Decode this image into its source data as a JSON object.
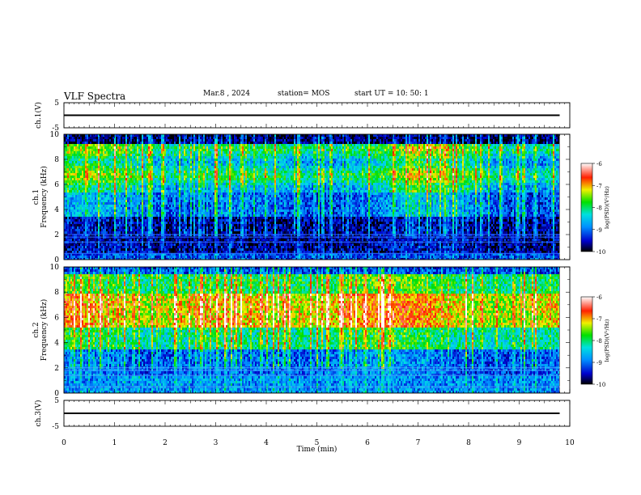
{
  "header": {
    "title": "VLF Spectra",
    "date": "Mar.8 , 2024",
    "station": "station= MOS",
    "start": "start UT =  10: 50: 1"
  },
  "chart_data": [
    {
      "type": "line",
      "panel": "ch1-voltage",
      "ylabel": "ch.1(V)",
      "ylim": [
        -5,
        5
      ],
      "yticks": [
        "5",
        "-5"
      ],
      "xlim": [
        0,
        10
      ],
      "series": [
        {
          "x": [
            0,
            9.8
          ],
          "values": [
            0,
            0
          ]
        }
      ]
    },
    {
      "type": "heatmap",
      "panel": "ch1-spectrogram",
      "ylabel": "ch.1\nFrequency (kHz)",
      "ylabel_line1": "ch.1",
      "ylabel_line2": "Frequency (kHz)",
      "ylim": [
        0,
        10
      ],
      "yticks": [
        "0",
        "2",
        "4",
        "6",
        "8",
        "10"
      ],
      "xlim": [
        0,
        10
      ],
      "data_xmax": 9.8,
      "colorbar": {
        "label": "log(PSD)(V²/Hz)",
        "range": [
          -10,
          -6
        ],
        "ticks": [
          "-6",
          "-7",
          "-8",
          "-9",
          "-10"
        ]
      }
    },
    {
      "type": "heatmap",
      "panel": "ch2-spectrogram",
      "ylabel": "ch.2\nFrequency (kHz)",
      "ylabel_line1": "ch.2",
      "ylabel_line2": "Frequency (kHz)",
      "ylim": [
        0,
        10
      ],
      "yticks": [
        "0",
        "2",
        "4",
        "6",
        "8",
        "10"
      ],
      "xlim": [
        0,
        10
      ],
      "data_xmax": 9.8,
      "colorbar": {
        "label": "log(PSD)(V²/Hz)",
        "range": [
          -10,
          -6
        ],
        "ticks": [
          "-6",
          "-7",
          "-8",
          "-9",
          "-10"
        ]
      }
    },
    {
      "type": "line",
      "panel": "ch3-voltage",
      "ylabel": "ch.3(V)",
      "ylim": [
        -5,
        5
      ],
      "yticks": [
        "5",
        "-5"
      ],
      "xlim": [
        0,
        10
      ],
      "xlabel": "Time (min)",
      "xticks": [
        "0",
        "1",
        "2",
        "3",
        "4",
        "5",
        "6",
        "7",
        "8",
        "9",
        "10"
      ],
      "series": [
        {
          "x": [
            0,
            9.8
          ],
          "values": [
            0,
            0
          ]
        }
      ]
    }
  ]
}
